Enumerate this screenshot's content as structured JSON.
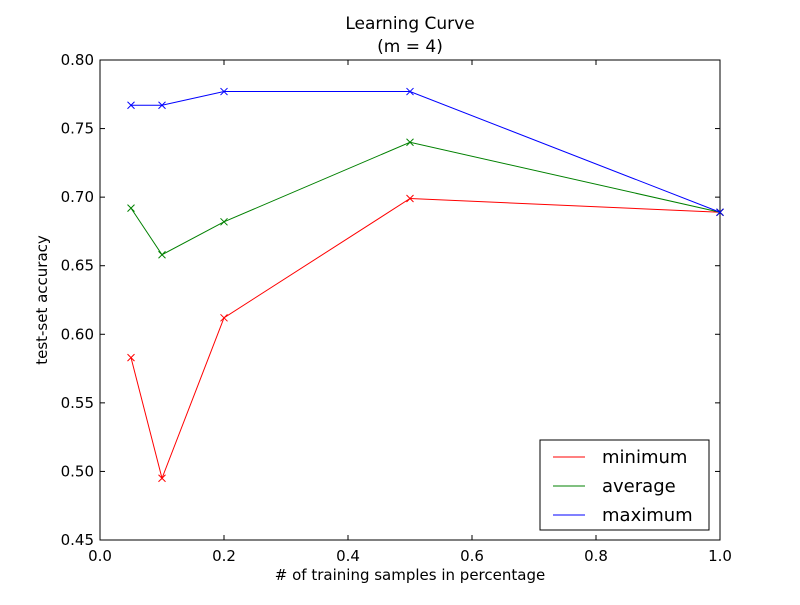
{
  "chart_data": {
    "type": "line",
    "title": "Learning Curve",
    "subtitle": "(m = 4)",
    "xlabel": "# of training samples in percentage",
    "ylabel": "test-set accuracy",
    "xlim": [
      0.0,
      1.0
    ],
    "ylim": [
      0.45,
      0.8
    ],
    "xticks": [
      0.0,
      0.2,
      0.4,
      0.6,
      0.8,
      1.0
    ],
    "xtick_labels": [
      "0.0",
      "0.2",
      "0.4",
      "0.6",
      "0.8",
      "1.0"
    ],
    "yticks": [
      0.45,
      0.5,
      0.55,
      0.6,
      0.65,
      0.7,
      0.75,
      0.8
    ],
    "ytick_labels": [
      "0.45",
      "0.50",
      "0.55",
      "0.60",
      "0.65",
      "0.70",
      "0.75",
      "0.80"
    ],
    "grid": false,
    "legend_position": "lower-right",
    "marker": "x",
    "x": [
      0.05,
      0.1,
      0.2,
      0.5,
      1.0
    ],
    "series": [
      {
        "name": "minimum",
        "color": "#ff0000",
        "values": [
          0.583,
          0.495,
          0.612,
          0.699,
          0.689
        ]
      },
      {
        "name": "average",
        "color": "#008000",
        "values": [
          0.692,
          0.658,
          0.682,
          0.74,
          0.689
        ]
      },
      {
        "name": "maximum",
        "color": "#0000ff",
        "values": [
          0.767,
          0.767,
          0.777,
          0.777,
          0.689
        ]
      }
    ]
  }
}
